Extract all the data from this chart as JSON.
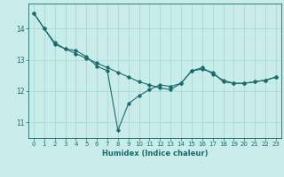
{
  "xlabel": "Humidex (Indice chaleur)",
  "ylabel": "",
  "background_color": "#c8ecea",
  "line_color": "#1a6b6b",
  "grid_color": "#a8d8d4",
  "xlim": [
    -0.5,
    23.5
  ],
  "ylim": [
    10.5,
    14.8
  ],
  "yticks": [
    11,
    12,
    13,
    14
  ],
  "xticks": [
    0,
    1,
    2,
    3,
    4,
    5,
    6,
    7,
    8,
    9,
    10,
    11,
    12,
    13,
    14,
    15,
    16,
    17,
    18,
    19,
    20,
    21,
    22,
    23
  ],
  "line1_x": [
    0,
    1,
    2,
    3,
    4,
    5,
    6,
    7,
    8,
    9,
    10,
    11,
    12,
    13,
    14,
    15,
    16,
    17,
    18,
    19,
    20,
    21,
    22,
    23
  ],
  "line1_y": [
    14.5,
    14.0,
    13.5,
    13.35,
    13.3,
    13.1,
    12.8,
    12.65,
    10.75,
    11.6,
    11.85,
    12.05,
    12.2,
    12.15,
    12.25,
    12.65,
    12.7,
    12.6,
    12.3,
    12.25,
    12.25,
    12.3,
    12.35,
    12.45
  ],
  "line2_x": [
    0,
    1,
    2,
    3,
    4,
    5,
    6,
    7,
    8,
    9,
    10,
    11,
    12,
    13,
    14,
    15,
    16,
    17,
    18,
    19,
    20,
    21,
    22,
    23
  ],
  "line2_y": [
    14.5,
    14.0,
    13.55,
    13.35,
    13.2,
    13.05,
    12.9,
    12.75,
    12.6,
    12.45,
    12.3,
    12.2,
    12.1,
    12.05,
    12.25,
    12.65,
    12.75,
    12.55,
    12.35,
    12.25,
    12.25,
    12.3,
    12.35,
    12.45
  ]
}
